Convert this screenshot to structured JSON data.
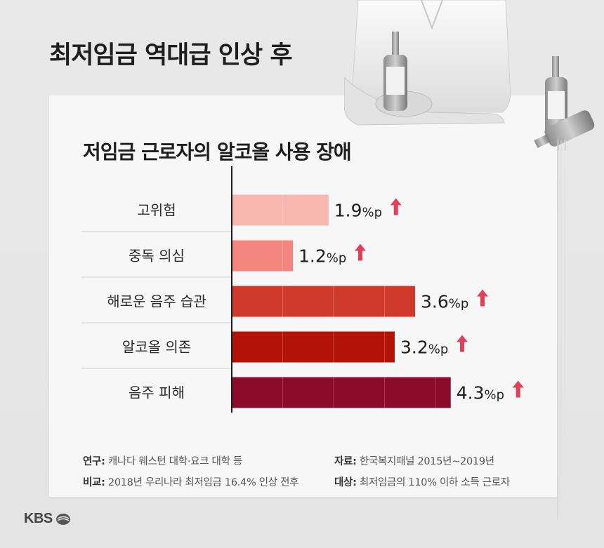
{
  "headline": "최저임금 역대급 인상 후",
  "chart_data": {
    "type": "bar",
    "orientation": "horizontal",
    "title": "저임금 근로자의 알코올 사용 장애",
    "categories": [
      "고위험",
      "중독 의심",
      "해로운 음주 습관",
      "알코올 의존",
      "음주 피해"
    ],
    "values": [
      1.9,
      1.2,
      3.6,
      3.2,
      4.3
    ],
    "value_labels": [
      "1.9",
      "1.2",
      "3.6",
      "3.2",
      "4.3"
    ],
    "unit": "%p",
    "colors": [
      "#f7b7b0",
      "#f4857f",
      "#d03a2a",
      "#b21208",
      "#8c0a2a"
    ],
    "arrow_color": "#e0405a"
  },
  "footer": {
    "research_label": "연구:",
    "research_value": "캐나다 웨스턴 대학·요크 대학 등",
    "source_label": "자료:",
    "source_value": "한국복지패널 2015년~2019년",
    "compare_label": "비교:",
    "compare_value": "2018년 우리나라 최저임금 16.4% 인상 전후",
    "target_label": "대상:",
    "target_value": "최저임금의 110% 이하 소득 근로자"
  },
  "logo": {
    "text": "KBS"
  }
}
